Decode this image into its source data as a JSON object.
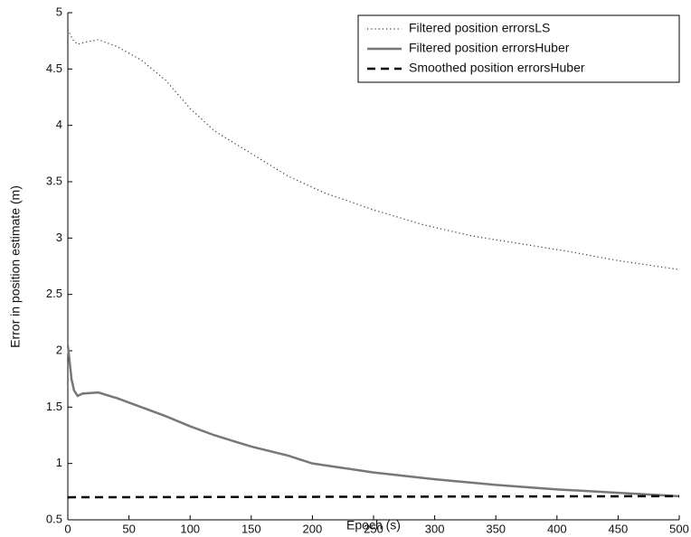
{
  "chart_data": {
    "type": "line",
    "xlabel": "Epoch (s)",
    "ylabel": "Error in  position estimate (m)",
    "xlim": [
      0,
      500
    ],
    "xticks": [
      0,
      50,
      100,
      150,
      200,
      250,
      300,
      350,
      400,
      450,
      500
    ],
    "ylim": [
      0.5,
      5
    ],
    "yticks": [
      0.5,
      1,
      1.5,
      2,
      2.5,
      3,
      3.5,
      4,
      4.5,
      5
    ],
    "legend": "upper right",
    "series": [
      {
        "name": "Filtered position errorsLS",
        "color": "#333333",
        "dash": "dotted",
        "x": [
          0,
          4,
          8,
          15,
          25,
          40,
          60,
          80,
          100,
          120,
          150,
          180,
          210,
          250,
          290,
          330,
          370,
          410,
          450,
          500
        ],
        "values": [
          4.85,
          4.76,
          4.72,
          4.74,
          4.76,
          4.7,
          4.58,
          4.4,
          4.15,
          3.95,
          3.75,
          3.55,
          3.4,
          3.25,
          3.12,
          3.02,
          2.95,
          2.88,
          2.8,
          2.72
        ]
      },
      {
        "name": "Filtered position errorsHuber",
        "color": "#777777",
        "dash": "solid",
        "x": [
          0,
          3,
          5,
          8,
          12,
          25,
          40,
          60,
          80,
          100,
          120,
          150,
          180,
          200,
          250,
          300,
          350,
          400,
          450,
          500
        ],
        "values": [
          2.05,
          1.75,
          1.65,
          1.6,
          1.62,
          1.63,
          1.58,
          1.5,
          1.42,
          1.33,
          1.25,
          1.15,
          1.07,
          1.0,
          0.92,
          0.86,
          0.81,
          0.77,
          0.74,
          0.71
        ]
      },
      {
        "name": "Smoothed position errorsHuber",
        "color": "#000000",
        "dash": "dashed",
        "x": [
          0,
          500
        ],
        "values": [
          0.7,
          0.71
        ]
      }
    ]
  }
}
